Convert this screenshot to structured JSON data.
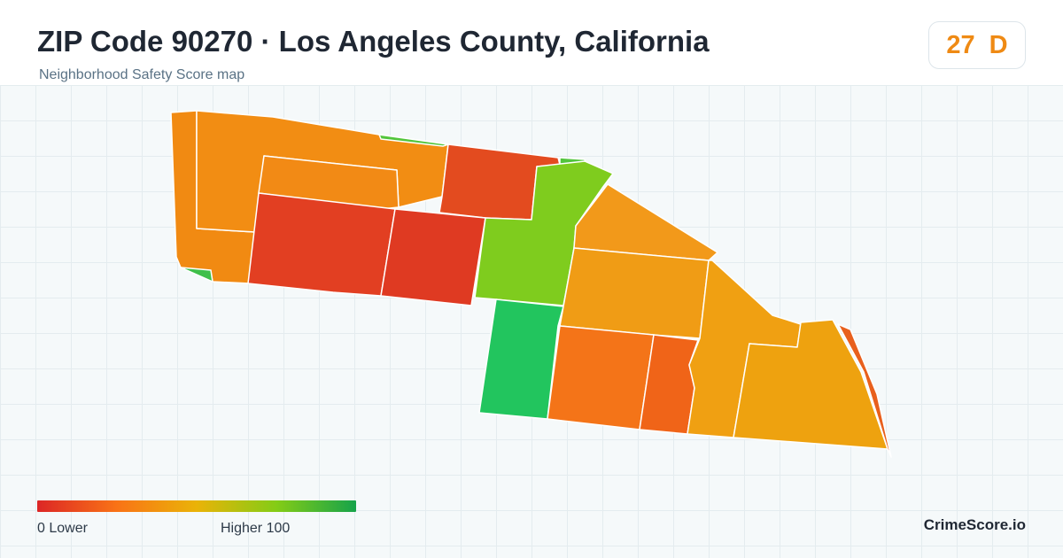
{
  "header": {
    "title": "ZIP Code 90270 · Los Angeles County, California",
    "subtitle": "Neighborhood Safety Score map"
  },
  "score": {
    "value": "27",
    "grade": "D",
    "color": "#ef8a14"
  },
  "legend": {
    "low_label": "0  Lower",
    "high_label": "Higher  100",
    "colors": [
      "#dc2626",
      "#f97316",
      "#eab308",
      "#84cc16",
      "#16a34a"
    ]
  },
  "brand": "CrimeScore.io",
  "map": {
    "region_colors": {
      "west-strip": "#f18a12",
      "north-band": "#f28d13",
      "middle-upper": "#f28a15",
      "red-block-north": "#e34b1f",
      "red-west": "#e23f22",
      "red-center": "#df3a22",
      "green-spine": "#7fcc1e",
      "small-green-north": "#52c53b",
      "small-green-sw": "#3fbf4a",
      "green-south": "#22c55e",
      "east-upper": "#f2991a",
      "east-middle": "#f09c15",
      "orange-south": "#f47418",
      "orange-red-south": "#f06418",
      "southeast-strip": "#f0a012",
      "southeast-large": "#eea20f",
      "east-edge": "#e8601d"
    }
  }
}
